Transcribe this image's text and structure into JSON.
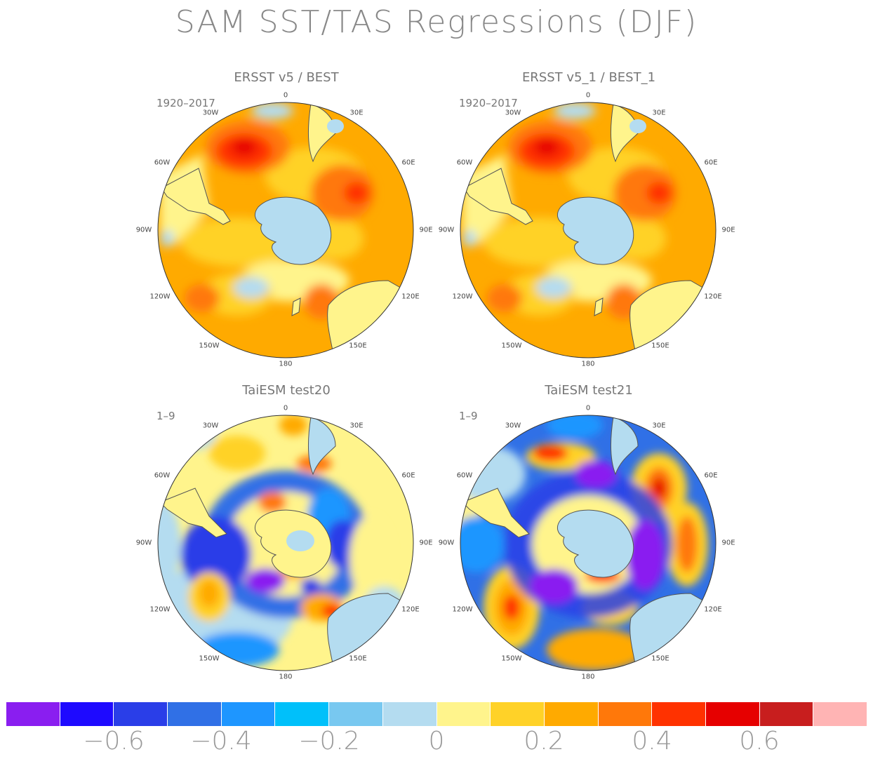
{
  "title": "SAM SST/TAS Regressions (DJF)",
  "panels": [
    {
      "title": "ERSST v5 / BEST",
      "period": "1920–2017"
    },
    {
      "title": "ERSST v5_1 / BEST_1",
      "period": "1920–2017"
    },
    {
      "title": "TaiESM test20",
      "period": "1–9"
    },
    {
      "title": "TaiESM test21",
      "period": "1–9"
    }
  ],
  "longitude_labels": [
    "0",
    "30E",
    "60E",
    "90E",
    "120E",
    "150E",
    "180",
    "150W",
    "120W",
    "90W",
    "60W",
    "30W"
  ],
  "colorbar": {
    "colors": [
      "#8a1ef0",
      "#1e0aff",
      "#2a3ee8",
      "#3070e6",
      "#1e96ff",
      "#00c0fa",
      "#78c8f0",
      "#b4dcf0",
      "#fff48c",
      "#ffd228",
      "#ffaa00",
      "#ff780a",
      "#ff3200",
      "#e60000",
      "#c81e1e",
      "#ffb4b4"
    ],
    "tick_labels": [
      "−0.6",
      "−0.4",
      "−0.2",
      "0",
      "0.2",
      "0.4",
      "0.6"
    ]
  }
}
